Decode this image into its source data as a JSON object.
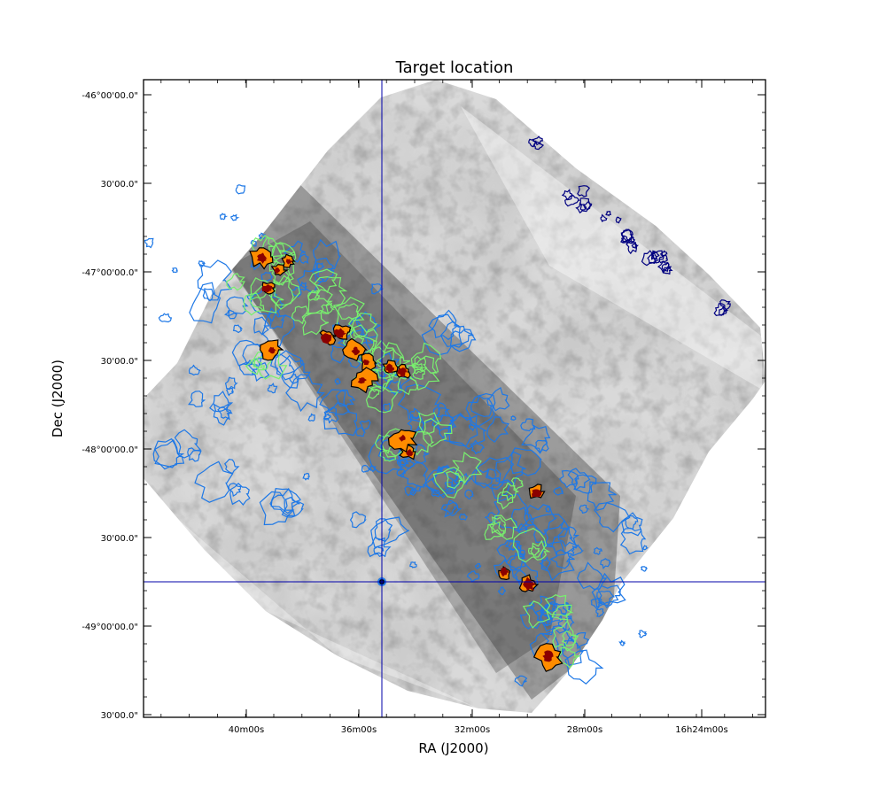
{
  "chart_data": {
    "type": "heatmap",
    "title": "Target location",
    "xlabel": "RA (J2000)",
    "ylabel": "Dec (J2000)",
    "x_ticks": [
      "40m00s",
      "36m00s",
      "32m00s",
      "28m00s",
      "16h24m00s"
    ],
    "y_ticks": [
      "-46°00'00.0\"",
      "30'00.0\"",
      "-47°00'00.0\"",
      "30'00.0\"",
      "-48°00'00.0\"",
      "30'00.0\"",
      "-49°00'00.0\"",
      "30'00.0\""
    ],
    "target": {
      "ra": "16h35m10s",
      "dec": "-48°45'"
    },
    "image_colormap": "grayscale (inverted)",
    "contour_colors": {
      "low": "#1e78e6",
      "mid": "#78f06e",
      "high": "#ff8c00",
      "peak": "#8b0000",
      "noise_edge": "#000080"
    },
    "crosshair_color": "#0000aa",
    "grid": false
  }
}
